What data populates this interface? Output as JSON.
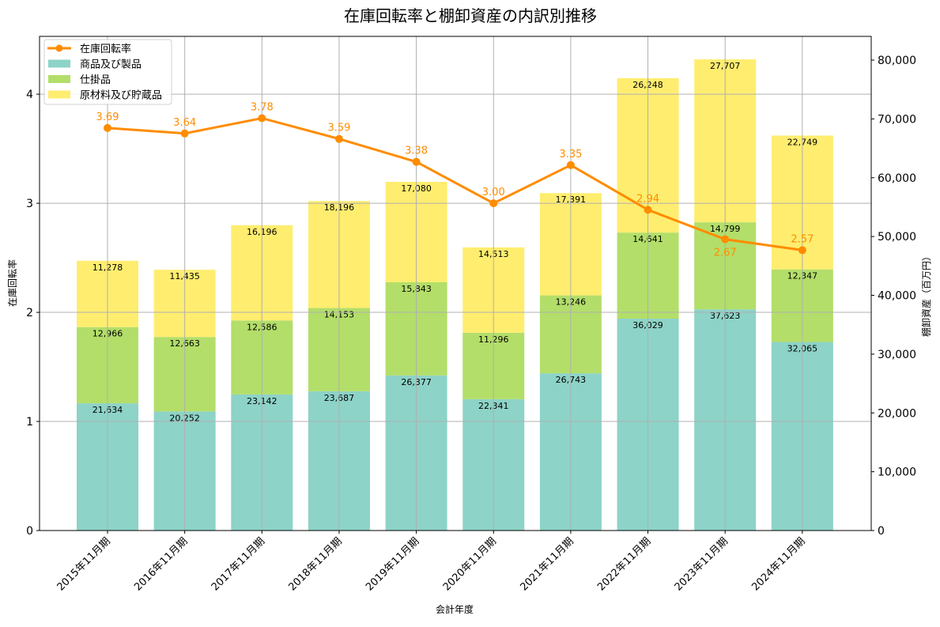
{
  "chart_data": {
    "type": "bar",
    "title": "在庫回転率と棚卸資産の内訳別推移",
    "xlabel": "会計年度",
    "ylabel_left": "在庫回転率",
    "ylabel_right": "棚卸資産（百万円）",
    "categories": [
      "2015年11月期",
      "2016年11月期",
      "2017年11月期",
      "2018年11月期",
      "2019年11月期",
      "2020年11月期",
      "2021年11月期",
      "2022年11月期",
      "2023年11月期",
      "2024年11月期"
    ],
    "series": [
      {
        "name": "商品及び製品",
        "type": "stacked-bar",
        "axis": "right",
        "color": "#8dd3c7",
        "values": [
          21634,
          20252,
          23142,
          23687,
          26377,
          22341,
          26743,
          36029,
          37623,
          32065
        ]
      },
      {
        "name": "仕掛品",
        "type": "stacked-bar",
        "axis": "right",
        "color": "#b3de69",
        "values": [
          12966,
          12663,
          12586,
          14153,
          15843,
          11296,
          13246,
          14641,
          14799,
          12347
        ]
      },
      {
        "name": "原材料及び貯蔵品",
        "type": "stacked-bar",
        "axis": "right",
        "color": "#ffed6f",
        "values": [
          11278,
          11435,
          16196,
          18196,
          17080,
          14513,
          17391,
          26248,
          27707,
          22749
        ]
      },
      {
        "name": "在庫回転率",
        "type": "line",
        "axis": "left",
        "color": "#ff8c00",
        "values": [
          3.69,
          3.64,
          3.78,
          3.59,
          3.38,
          3.0,
          3.35,
          2.94,
          2.67,
          2.57
        ]
      }
    ],
    "ylim_left": [
      0,
      4.53
    ],
    "yticks_left": [
      "0",
      "1",
      "2",
      "3",
      "4"
    ],
    "ylim_right": [
      0,
      84034
    ],
    "yticks_right": [
      "0",
      "10,000",
      "20,000",
      "30,000",
      "40,000",
      "50,000",
      "60,000",
      "70,000",
      "80,000"
    ],
    "grid": true,
    "legend_position": "top-left"
  }
}
